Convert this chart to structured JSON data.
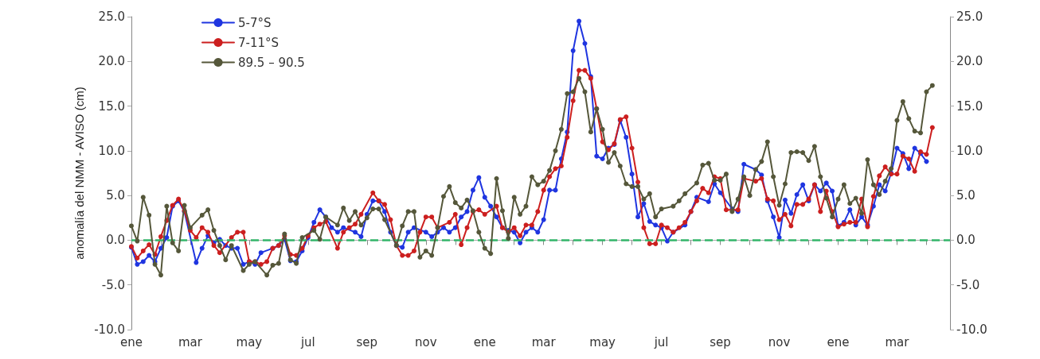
{
  "chart_data": {
    "type": "line",
    "ylabel": "anomalía del NMM - AVISO (cm)",
    "categories": [
      "ene",
      null,
      null,
      null,
      null,
      null,
      null,
      null,
      null,
      null,
      "mar",
      null,
      null,
      null,
      null,
      null,
      null,
      null,
      null,
      null,
      "may",
      null,
      null,
      null,
      null,
      null,
      null,
      null,
      null,
      null,
      "jul",
      null,
      null,
      null,
      null,
      null,
      null,
      null,
      null,
      null,
      "sep",
      null,
      null,
      null,
      null,
      null,
      null,
      null,
      null,
      null,
      "nov",
      null,
      null,
      null,
      null,
      null,
      null,
      null,
      null,
      null,
      "ene",
      null,
      null,
      null,
      null,
      null,
      null,
      null,
      null,
      null,
      "mar",
      null,
      null,
      null,
      null,
      null,
      null,
      null,
      null,
      null,
      "may",
      null,
      null,
      null,
      null,
      null,
      null,
      null,
      null,
      null,
      "jul",
      null,
      null,
      null,
      null,
      null,
      null,
      null,
      null,
      null,
      "sep",
      null,
      null,
      null,
      null,
      null,
      null,
      null,
      null,
      null,
      "nov",
      null,
      null,
      null,
      null,
      null,
      null,
      null,
      null,
      null,
      "ene",
      null,
      null,
      null,
      null,
      null,
      null,
      null,
      null,
      null,
      "mar",
      null,
      null,
      null,
      null,
      null,
      null,
      null,
      null,
      null
    ],
    "ylim": [
      -10,
      25
    ],
    "yticks": [
      {
        "value": -10,
        "label": "-10.0"
      },
      {
        "value": -5,
        "label": "-5.0"
      },
      {
        "value": 0,
        "label": "0.0"
      },
      {
        "value": 5,
        "label": "5.0"
      },
      {
        "value": 10,
        "label": "10.0"
      },
      {
        "value": 15,
        "label": "15.0"
      },
      {
        "value": 20,
        "label": "20.0"
      },
      {
        "value": 25,
        "label": "25.0"
      }
    ],
    "y2lim": [
      -10,
      25
    ],
    "y2ticks": [
      {
        "value": -10,
        "label": "-10.0"
      },
      {
        "value": -5,
        "label": "-5.0"
      },
      {
        "value": 0,
        "label": "0.0"
      },
      {
        "value": 5,
        "label": "5.0"
      },
      {
        "value": 10,
        "label": "10.0"
      },
      {
        "value": 15,
        "label": "15.0"
      },
      {
        "value": 20,
        "label": "20.0"
      },
      {
        "value": 25,
        "label": "25.0"
      }
    ],
    "grid": false,
    "legend": "top left",
    "marker": "circle",
    "line_style": "solid",
    "ref_lines": [
      {
        "axis": "y",
        "value": 0,
        "label": null,
        "color": "#33b56a",
        "line_style": "dashed"
      }
    ],
    "series": [
      {
        "name": "5-7°S",
        "color": "#1f35e0",
        "values": [
          -0.8,
          -2.7,
          -2.4,
          -1.7,
          -2.4,
          -0.9,
          0.3,
          3.8,
          4.4,
          3.2,
          null,
          -2.5,
          -0.9,
          0.5,
          -0.3,
          0.1,
          -0.6,
          -0.9,
          -0.9,
          -2.7,
          -2.4,
          -2.7,
          -1.4,
          null,
          -0.9,
          -0.6,
          0.1,
          -2.3,
          -2.4,
          -1.2,
          0.3,
          2.0,
          3.4,
          2.6,
          1.4,
          0.9,
          1.4,
          null,
          0.9,
          0.4,
          2.9,
          4.4,
          4.4,
          3.2,
          0.9,
          -0.6,
          -0.8,
          0.9,
          1.4,
          null,
          0.9,
          0.4,
          0.9,
          1.4,
          0.9,
          1.4,
          2.6,
          3.2,
          5.6,
          7.0,
          4.8,
          3.8,
          2.6,
          1.4,
          1.1,
          0.9,
          -0.3,
          0.9,
          1.4,
          0.9,
          2.3,
          5.6,
          5.6,
          9.1,
          12.1,
          21.2,
          24.5,
          22.0,
          18.3,
          9.4,
          9.1,
          10.3,
          10.7,
          13.4,
          11.5,
          7.4,
          2.6,
          4.1,
          2.1,
          1.7,
          1.4,
          -0.1,
          0.9,
          null,
          1.7,
          3.2,
          4.8,
          null,
          4.3,
          6.3,
          5.3,
          null,
          3.5,
          3.2,
          8.5,
          null,
          7.9,
          7.3,
          4.4,
          2.6,
          0.3,
          4.5,
          3.0,
          5.1,
          6.2,
          4.4,
          6.2,
          5.5,
          6.4,
          5.5,
          1.6,
          2.0,
          3.4,
          1.7,
          2.6,
          1.7,
          3.8,
          6.2,
          5.5,
          7.5,
          10.3,
          9.7,
          8.0,
          10.3,
          9.7,
          8.8,
          null,
          null,
          null,
          null
        ]
      },
      {
        "name": "7-11°S",
        "color": "#cc1f1f",
        "values": [
          -0.7,
          -2.0,
          -1.2,
          -0.5,
          -1.6,
          0.4,
          2.2,
          3.9,
          4.6,
          3.3,
          1.1,
          0.3,
          1.4,
          0.9,
          -0.6,
          -1.4,
          null,
          0.3,
          0.9,
          0.9,
          -2.4,
          -2.4,
          -2.7,
          -2.4,
          -0.9,
          -0.6,
          0.5,
          -1.6,
          -1.7,
          -0.9,
          0.5,
          1.4,
          1.8,
          2.1,
          null,
          -0.9,
          0.9,
          1.4,
          1.8,
          2.9,
          null,
          5.3,
          4.4,
          4.0,
          2.3,
          -0.6,
          -1.7,
          -1.7,
          -1.2,
          0.9,
          2.6,
          2.6,
          1.4,
          null,
          2.0,
          2.9,
          -0.5,
          1.4,
          3.2,
          3.4,
          2.9,
          null,
          3.8,
          1.4,
          0.9,
          1.4,
          0.5,
          1.7,
          1.7,
          3.2,
          5.6,
          7.1,
          8.0,
          8.3,
          11.5,
          15.6,
          19.0,
          19.0,
          18.1,
          14.7,
          11.0,
          10.1,
          10.8,
          13.5,
          13.8,
          10.3,
          6.5,
          1.4,
          -0.4,
          -0.4,
          1.7,
          1.4,
          0.9,
          1.4,
          2.0,
          3.2,
          4.4,
          5.8,
          5.3,
          7.1,
          6.9,
          3.4,
          null,
          3.4,
          6.9,
          null,
          6.6,
          6.9,
          4.6,
          4.4,
          2.3,
          2.9,
          1.6,
          4.0,
          4.0,
          4.6,
          6.2,
          3.2,
          5.5,
          3.2,
          1.5,
          1.8,
          2.0,
          2.0,
          4.6,
          1.5,
          4.9,
          7.2,
          8.2,
          7.4,
          7.4,
          9.4,
          9.1,
          7.7,
          9.9,
          9.6,
          12.6,
          null,
          null,
          null
        ]
      },
      {
        "name": "89.5 – 90.5",
        "color": "#55573a",
        "values": [
          1.6,
          -0.1,
          4.8,
          2.8,
          -2.7,
          -3.9,
          3.8,
          -0.3,
          -1.2,
          3.9,
          1.4,
          null,
          2.8,
          3.4,
          1.1,
          -0.6,
          -2.2,
          -0.6,
          null,
          -3.4,
          -2.7,
          -2.4,
          null,
          -3.9,
          -2.8,
          -2.6,
          0.7,
          -2.2,
          -2.6,
          0.3,
          null,
          1.1,
          0.1,
          2.6,
          null,
          1.7,
          3.6,
          2.2,
          3.2,
          1.7,
          2.5,
          3.5,
          3.5,
          2.3,
          null,
          -0.6,
          1.6,
          3.2,
          3.2,
          -1.9,
          -1.2,
          -1.7,
          1.4,
          4.9,
          6.0,
          4.2,
          3.6,
          4.5,
          3.3,
          0.9,
          -0.9,
          -1.5,
          6.9,
          3.3,
          0.2,
          4.8,
          2.9,
          3.8,
          7.1,
          6.2,
          6.6,
          7.8,
          10.0,
          12.4,
          16.4,
          16.6,
          18.1,
          16.6,
          12.1,
          14.7,
          12.4,
          8.7,
          9.8,
          8.3,
          6.3,
          6.0,
          6.0,
          4.6,
          5.2,
          2.6,
          3.5,
          null,
          3.8,
          4.4,
          5.2,
          null,
          6.4,
          8.4,
          8.6,
          6.7,
          6.7,
          7.4,
          3.2,
          4.6,
          7.1,
          5.0,
          7.9,
          8.8,
          11.0,
          7.1,
          3.9,
          6.3,
          9.8,
          9.9,
          9.8,
          8.9,
          10.5,
          7.1,
          4.7,
          2.6,
          4.6,
          6.2,
          4.1,
          4.7,
          3.0,
          9.0,
          6.2,
          5.1,
          6.6,
          8.0,
          13.4,
          15.5,
          13.6,
          12.2,
          12.0,
          16.6,
          17.3,
          null,
          null,
          null
        ]
      }
    ]
  }
}
